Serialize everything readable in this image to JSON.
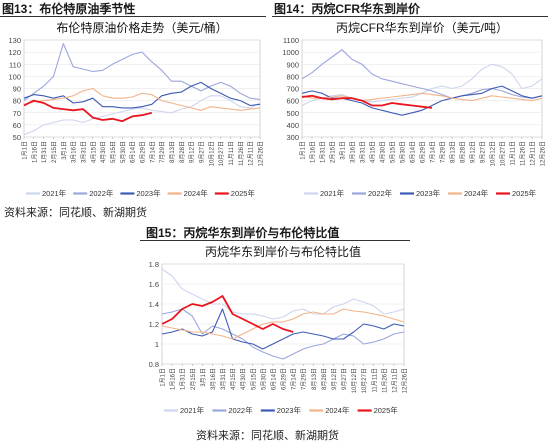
{
  "figures": [
    {
      "caption": "图13：布伦特原油季节性",
      "chart_data": {
        "type": "line",
        "title": "布伦特原油价格走势（美元/桶）",
        "xlabel": "",
        "ylabel": "",
        "ylim": [
          50,
          130
        ],
        "yticks": [
          "50",
          "60",
          "70",
          "80",
          "90",
          "100",
          "110",
          "120",
          "130"
        ],
        "x_ticks": [
          "1月1日",
          "1月16日",
          "1月31日",
          "2月15日",
          "3月1日",
          "3月16日",
          "3月31日",
          "4月15日",
          "4月30日",
          "5月15日",
          "5月30日",
          "6月14日",
          "6月29日",
          "7月14日",
          "7月29日",
          "8月13日",
          "8月28日",
          "9月12日",
          "9月27日",
          "10月12日",
          "10月27日",
          "11月11日",
          "11月26日",
          "12月11日",
          "12月26日"
        ],
        "grid": true,
        "legend": "bottom",
        "series": [
          {
            "name": "2021年",
            "color": "#cdd5ef",
            "values": [
              52,
              55,
              60,
              62,
              64,
              64,
              62,
              65,
              67,
              69,
              71,
              73,
              74,
              72,
              71,
              70,
              73,
              75,
              80,
              84,
              84,
              80,
              75,
              74,
              78
            ]
          },
          {
            "name": "2022年",
            "color": "#9aa6dc",
            "values": [
              80,
              86,
              92,
              100,
              127,
              108,
              106,
              104,
              105,
              110,
              114,
              118,
              120,
              112,
              105,
              96,
              96,
              92,
              88,
              92,
              95,
              92,
              86,
              82,
              81
            ]
          },
          {
            "name": "2023年",
            "color": "#3d5bb4",
            "values": [
              82,
              85,
              84,
              82,
              84,
              78,
              79,
              82,
              75,
              75,
              74,
              74,
              75,
              77,
              84,
              86,
              87,
              92,
              95,
              90,
              86,
              82,
              80,
              76,
              77
            ]
          },
          {
            "name": "2024年",
            "color": "#f2b48a",
            "values": [
              77,
              79,
              80,
              81,
              82,
              84,
              88,
              90,
              84,
              82,
              82,
              83,
              86,
              85,
              80,
              78,
              76,
              74,
              72,
              75,
              74,
              73,
              72,
              73,
              74
            ]
          },
          {
            "name": "2025年",
            "color": "#e8141e",
            "values": [
              76,
              80,
              78,
              74,
              73,
              72,
              73,
              66,
              64,
              65,
              63,
              67,
              68,
              70
            ]
          }
        ]
      }
    },
    {
      "caption": "图14：丙烷CFR华东到岸价",
      "chart_data": {
        "type": "line",
        "title": "丙烷CFR华东到岸价（美元/吨）",
        "xlabel": "",
        "ylabel": "",
        "ylim": [
          300,
          1100
        ],
        "yticks": [
          "300",
          "400",
          "500",
          "600",
          "700",
          "800",
          "900",
          "1000",
          "1100"
        ],
        "x_ticks": [
          "1月1日",
          "1月16日",
          "1月31日",
          "2月15日",
          "3月1日",
          "3月16日",
          "3月31日",
          "4月15日",
          "4月30日",
          "5月15日",
          "5月30日",
          "6月14日",
          "6月29日",
          "7月14日",
          "7月29日",
          "8月13日",
          "8月28日",
          "9月12日",
          "9月27日",
          "10月12日",
          "10月27日",
          "11月11日",
          "11月26日",
          "12月11日",
          "12月26日"
        ],
        "grid": true,
        "legend": "bottom",
        "series": [
          {
            "name": "2021年",
            "color": "#cdd5ef",
            "values": [
              560,
              600,
              620,
              640,
              650,
              620,
              600,
              590,
              600,
              610,
              620,
              630,
              660,
              700,
              720,
              700,
              720,
              780,
              860,
              900,
              880,
              820,
              700,
              720,
              780
            ]
          },
          {
            "name": "2022年",
            "color": "#9aa6dc",
            "values": [
              780,
              830,
              900,
              960,
              1020,
              940,
              900,
              820,
              780,
              760,
              740,
              720,
              700,
              680,
              650,
              620,
              640,
              660,
              690,
              700,
              680,
              650,
              630,
              620,
              640
            ]
          },
          {
            "name": "2023年",
            "color": "#3d5bb4",
            "values": [
              660,
              680,
              660,
              620,
              620,
              600,
              580,
              540,
              520,
              500,
              480,
              500,
              520,
              560,
              600,
              620,
              640,
              650,
              660,
              700,
              720,
              680,
              640,
              620,
              640
            ]
          },
          {
            "name": "2024年",
            "color": "#f2b48a",
            "values": [
              640,
              620,
              620,
              630,
              640,
              620,
              600,
              610,
              620,
              630,
              640,
              650,
              660,
              650,
              640,
              620,
              610,
              600,
              620,
              640,
              630,
              620,
              610,
              600,
              620
            ]
          },
          {
            "name": "2025年",
            "color": "#e8141e",
            "values": [
              630,
              640,
              620,
              610,
              620,
              620,
              600,
              560,
              560,
              580,
              570,
              560,
              550,
              540
            ]
          }
        ]
      }
    },
    {
      "caption": "图15：丙烷华东到岸价与布伦特比值",
      "chart_data": {
        "type": "line",
        "title": "丙烷华东到岸价与布伦特比值",
        "xlabel": "",
        "ylabel": "",
        "ylim": [
          0.8,
          1.8
        ],
        "yticks": [
          "0.8",
          "1",
          "1.2",
          "1.4",
          "1.6",
          "1.8"
        ],
        "x_ticks": [
          "1月1日",
          "1月16日",
          "1月31日",
          "2月15日",
          "3月1日",
          "3月16日",
          "3月31日",
          "4月15日",
          "4月30日",
          "5月15日",
          "5月30日",
          "6月14日",
          "6月29日",
          "7月14日",
          "7月29日",
          "8月13日",
          "8月28日",
          "9月12日",
          "9月27日",
          "10月12日",
          "10月27日",
          "11月11日",
          "11月26日",
          "12月11日",
          "12月26日"
        ],
        "grid": true,
        "legend": "bottom",
        "series": [
          {
            "name": "2021年",
            "color": "#cdd5ef",
            "values": [
              1.75,
              1.68,
              1.55,
              1.5,
              1.45,
              1.4,
              1.4,
              1.32,
              1.3,
              1.3,
              1.28,
              1.25,
              1.27,
              1.33,
              1.35,
              1.3,
              1.3,
              1.37,
              1.4,
              1.45,
              1.42,
              1.38,
              1.3,
              1.32,
              1.35
            ]
          },
          {
            "name": "2022年",
            "color": "#9aa6dc",
            "values": [
              1.3,
              1.32,
              1.35,
              1.28,
              1.1,
              1.18,
              1.15,
              1.1,
              1.05,
              0.97,
              0.92,
              0.88,
              0.85,
              0.9,
              0.95,
              0.98,
              1.0,
              1.05,
              1.1,
              1.08,
              1.0,
              1.02,
              1.05,
              1.1,
              1.12
            ]
          },
          {
            "name": "2023年",
            "color": "#3d5bb4",
            "values": [
              1.1,
              1.12,
              1.15,
              1.1,
              1.08,
              1.12,
              1.35,
              1.05,
              1.02,
              1.0,
              0.95,
              1.0,
              1.05,
              1.1,
              1.12,
              1.1,
              1.08,
              1.05,
              1.05,
              1.12,
              1.2,
              1.18,
              1.15,
              1.2,
              1.18
            ]
          },
          {
            "name": "2024年",
            "color": "#f2b48a",
            "values": [
              1.18,
              1.16,
              1.14,
              1.12,
              1.12,
              1.1,
              1.08,
              1.05,
              1.1,
              1.15,
              1.2,
              1.22,
              1.22,
              1.25,
              1.3,
              1.32,
              1.3,
              1.3,
              1.35,
              1.33,
              1.32,
              1.3,
              1.28,
              1.25,
              1.22
            ]
          },
          {
            "name": "2025年",
            "color": "#e8141e",
            "values": [
              1.2,
              1.25,
              1.35,
              1.4,
              1.38,
              1.42,
              1.48,
              1.3,
              1.25,
              1.2,
              1.15,
              1.2,
              1.15,
              1.12
            ]
          }
        ]
      }
    }
  ],
  "source_text": "资料来源：同花顺、新湖期货"
}
